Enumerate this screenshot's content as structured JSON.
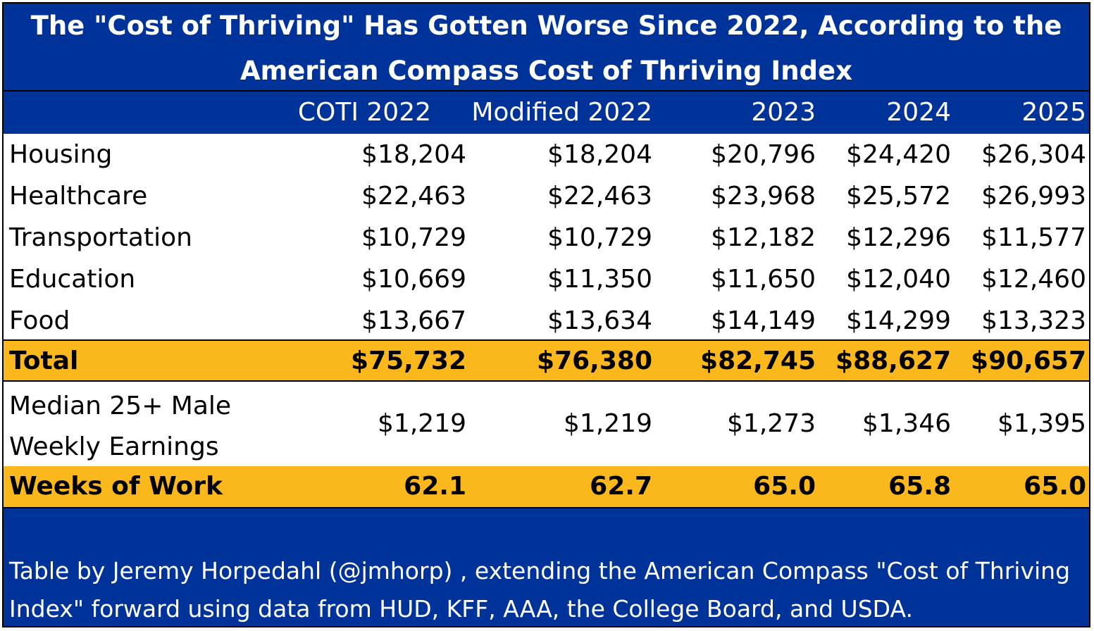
{
  "title": {
    "line1": "The \"Cost of Thriving\" Has Gotten Worse Since 2022, According to the",
    "line2": "American Compass Cost of Thriving Index"
  },
  "colors": {
    "header_bg": "#00339a",
    "highlight_bg": "#fbb81d",
    "text_light": "#ffffff",
    "text_dark": "#000000"
  },
  "chart_data": {
    "type": "table",
    "columns": [
      "COTI 2022",
      "Modified 2022",
      "2023",
      "2024",
      "2025"
    ],
    "rows": [
      {
        "label": "Housing",
        "values": [
          "$18,204",
          "$18,204",
          "$20,796",
          "$24,420",
          "$26,304"
        ]
      },
      {
        "label": "Healthcare",
        "values": [
          "$22,463",
          "$22,463",
          "$23,968",
          "$25,572",
          "$26,993"
        ]
      },
      {
        "label": "Transportation",
        "values": [
          "$10,729",
          "$10,729",
          "$12,182",
          "$12,296",
          "$11,577"
        ]
      },
      {
        "label": "Education",
        "values": [
          "$10,669",
          "$11,350",
          "$11,650",
          "$12,040",
          "$12,460"
        ]
      },
      {
        "label": "Food",
        "values": [
          "$13,667",
          "$13,634",
          "$14,149",
          "$14,299",
          "$13,323"
        ]
      }
    ],
    "total": {
      "label": "Total",
      "values": [
        "$75,732",
        "$76,380",
        "$82,745",
        "$88,627",
        "$90,657"
      ]
    },
    "earnings": {
      "label_line1": "Median 25+ Male",
      "label_line2": "Weekly Earnings",
      "values": [
        "$1,219",
        "$1,219",
        "$1,273",
        "$1,346",
        "$1,395"
      ]
    },
    "weeks": {
      "label": "Weeks of Work",
      "values": [
        "62.1",
        "62.7",
        "65.0",
        "65.8",
        "65.0"
      ]
    }
  },
  "footer": {
    "note": "Table by Jeremy Horpedahl (@jmhorp) , extending the American Compass \"Cost of Thriving Index\" forward using data from HUD, KFF, AAA, the College Board, and USDA."
  }
}
